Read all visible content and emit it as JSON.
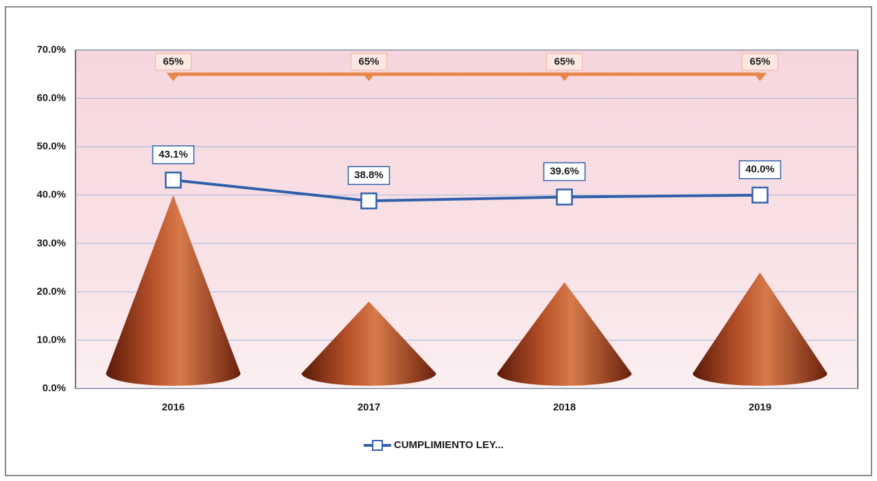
{
  "chart_data": {
    "type": "line",
    "categories": [
      "2016",
      "2017",
      "2018",
      "2019"
    ],
    "ylim": [
      0,
      70
    ],
    "yticks": [
      {
        "value": 0,
        "label": "0.0%"
      },
      {
        "value": 10,
        "label": "10.0%"
      },
      {
        "value": 20,
        "label": "20.0%"
      },
      {
        "value": 30,
        "label": "30.0%"
      },
      {
        "value": 40,
        "label": "40.0%"
      },
      {
        "value": 50,
        "label": "50.0%"
      },
      {
        "value": 60,
        "label": "60.0%"
      },
      {
        "value": 70,
        "label": "70.0%"
      }
    ],
    "grid": true,
    "legend": "bottom",
    "series": [
      {
        "type": "cone",
        "color": "#a8441c",
        "values": [
          40,
          18,
          22,
          24
        ]
      },
      {
        "type": "line",
        "color": "#e8874a",
        "marker": "triangle",
        "values": [
          65,
          65,
          65,
          65
        ],
        "value_labels": [
          "65%",
          "65%",
          "65%",
          "65%"
        ]
      },
      {
        "type": "line",
        "name": "CUMPLIMIENTO LEY...",
        "color": "#2f5fab",
        "marker": "square",
        "values": [
          43.1,
          38.8,
          39.6,
          40.0
        ],
        "value_labels": [
          "43.1%",
          "38.8%",
          "39.6%",
          "40.0%"
        ]
      }
    ]
  }
}
